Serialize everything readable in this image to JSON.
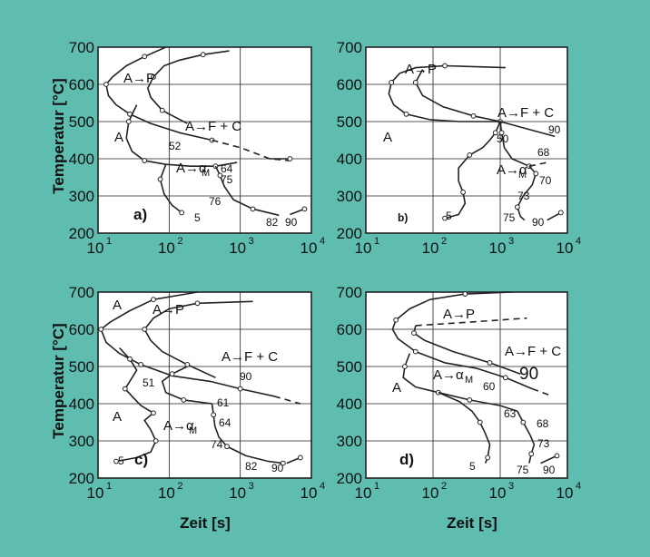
{
  "colors": {
    "background": "#5fbdb0",
    "plot_bg": "#ffffff",
    "line": "#222222"
  },
  "axis_labels": {
    "y": "Temperatur [°C]",
    "x": "Zeit [s]"
  },
  "chart_data": [
    {
      "id": "a",
      "type": "line",
      "panel_label": "a)",
      "xscale": "log",
      "xlim": [
        10,
        10000
      ],
      "ylim": [
        200,
        700
      ],
      "grid": true,
      "x_ticks": [
        "10^1",
        "10^2",
        "10^3",
        "10^4"
      ],
      "y_ticks": [
        200,
        300,
        400,
        500,
        600,
        700
      ],
      "series": [
        {
          "points": [
            [
              90,
              700
            ],
            [
              45,
              675
            ],
            [
              25,
              650
            ],
            [
              16,
              620
            ],
            [
              13,
              600
            ],
            [
              14,
              570
            ],
            [
              18,
              545
            ],
            [
              28,
              520
            ],
            [
              55,
              495
            ],
            [
              140,
              470
            ],
            [
              400,
              450
            ]
          ]
        },
        {
          "points": [
            [
              700,
              690
            ],
            [
              300,
              680
            ],
            [
              140,
              665
            ],
            [
              85,
              650
            ],
            [
              60,
              620
            ],
            [
              50,
              590
            ],
            [
              55,
              565
            ],
            [
              80,
              530
            ],
            [
              180,
              495
            ]
          ]
        },
        {
          "points": [
            [
              35,
              545
            ],
            [
              27,
              500
            ],
            [
              25,
              455
            ],
            [
              30,
              420
            ],
            [
              45,
              395
            ],
            [
              90,
              385
            ],
            [
              200,
              380
            ],
            [
              450,
              380
            ],
            [
              900,
              390
            ]
          ]
        },
        {
          "points": [
            [
              90,
              385
            ],
            [
              75,
              345
            ],
            [
              85,
              305
            ],
            [
              110,
              275
            ],
            [
              150,
              255
            ]
          ]
        },
        {
          "points": [
            [
              450,
              380
            ],
            [
              520,
              355
            ],
            [
              600,
              325
            ],
            [
              800,
              290
            ],
            [
              1500,
              265
            ],
            [
              3500,
              248
            ]
          ]
        },
        {
          "points": [
            [
              400,
              450
            ],
            [
              1000,
              430
            ],
            [
              2600,
              400
            ],
            [
              5000,
              395
            ]
          ],
          "dashed": true
        },
        {
          "points": [
            [
              2600,
              400
            ],
            [
              5000,
              400
            ]
          ]
        },
        {
          "points": [
            [
              5000,
              250
            ],
            [
              8000,
              265
            ]
          ]
        }
      ],
      "region_labels": [
        "A",
        "A→P",
        "A→F + C",
        "A→α",
        "M"
      ],
      "data_labels": [
        "52",
        "64",
        "75",
        "76",
        "5",
        "82",
        "90"
      ]
    },
    {
      "id": "b",
      "type": "line",
      "panel_label": "b)",
      "xscale": "log",
      "xlim": [
        10,
        10000
      ],
      "ylim": [
        200,
        700
      ],
      "grid": true,
      "x_ticks": [
        "10^1",
        "10^2",
        "10^3",
        "10^4"
      ],
      "y_ticks": [
        200,
        300,
        400,
        500,
        600,
        700
      ],
      "series": [
        {
          "points": [
            [
              1200,
              645
            ],
            [
              150,
              650
            ],
            [
              55,
              645
            ],
            [
              32,
              630
            ],
            [
              24,
              605
            ],
            [
              22,
              575
            ],
            [
              26,
              545
            ],
            [
              40,
              520
            ],
            [
              90,
              505
            ],
            [
              250,
              500
            ],
            [
              1000,
              500
            ]
          ]
        },
        {
          "points": [
            [
              70,
              640
            ],
            [
              55,
              605
            ],
            [
              70,
              570
            ],
            [
              140,
              540
            ],
            [
              400,
              515
            ],
            [
              1000,
              500
            ],
            [
              6500,
              460
            ]
          ]
        },
        {
          "points": [
            [
              1000,
              500
            ],
            [
              850,
              470
            ],
            [
              700,
              450
            ],
            [
              550,
              430
            ],
            [
              350,
              410
            ],
            [
              240,
              375
            ],
            [
              240,
              340
            ],
            [
              280,
              310
            ],
            [
              300,
              280
            ],
            [
              240,
              250
            ],
            [
              150,
              240
            ]
          ]
        },
        {
          "points": [
            [
              1000,
              500
            ],
            [
              1050,
              470
            ],
            [
              1150,
              430
            ],
            [
              1500,
              400
            ],
            [
              2700,
              380
            ]
          ]
        },
        {
          "points": [
            [
              2700,
              380
            ],
            [
              3400,
              360
            ],
            [
              3000,
              330
            ],
            [
              2200,
              300
            ],
            [
              1800,
              270
            ],
            [
              2000,
              245
            ],
            [
              2300,
              235
            ]
          ]
        },
        {
          "points": [
            [
              2700,
              380
            ],
            [
              5000,
              390
            ]
          ],
          "dashed": true
        },
        {
          "points": [
            [
              5000,
              235
            ],
            [
              8000,
              255
            ]
          ]
        }
      ],
      "region_labels": [
        "A",
        "A→P",
        "A→F + C",
        "A→α",
        "M"
      ],
      "data_labels": [
        "90",
        "50",
        "68",
        "70",
        "73",
        "5",
        "75",
        "90"
      ]
    },
    {
      "id": "c",
      "type": "line",
      "panel_label": "c)",
      "xscale": "log",
      "xlim": [
        10,
        10000
      ],
      "ylim": [
        200,
        700
      ],
      "grid": true,
      "x_ticks": [
        "10^1",
        "10^2",
        "10^3",
        "10^4"
      ],
      "y_ticks": [
        200,
        300,
        400,
        500,
        600,
        700
      ],
      "series": [
        {
          "points": [
            [
              250,
              700
            ],
            [
              60,
              680
            ],
            [
              28,
              650
            ],
            [
              15,
              620
            ],
            [
              11,
              600
            ],
            [
              13,
              565
            ],
            [
              20,
              535
            ],
            [
              40,
              505
            ],
            [
              110,
              475
            ],
            [
              380,
              460
            ],
            [
              1000,
              440
            ],
            [
              3000,
              420
            ]
          ]
        },
        {
          "points": [
            [
              1500,
              675
            ],
            [
              250,
              670
            ],
            [
              100,
              655
            ],
            [
              60,
              630
            ],
            [
              45,
              600
            ],
            [
              55,
              570
            ],
            [
              80,
              540
            ],
            [
              180,
              505
            ],
            [
              450,
              470
            ]
          ]
        },
        {
          "points": [
            [
              20,
              550
            ],
            [
              28,
              520
            ],
            [
              35,
              490
            ],
            [
              28,
              460
            ],
            [
              24,
              440
            ],
            [
              30,
              420
            ],
            [
              40,
              395
            ],
            [
              60,
              375
            ],
            [
              45,
              355
            ],
            [
              55,
              330
            ],
            [
              65,
              300
            ],
            [
              55,
              270
            ],
            [
              35,
              255
            ],
            [
              18,
              245
            ]
          ]
        },
        {
          "points": [
            [
              180,
              500
            ],
            [
              110,
              480
            ],
            [
              80,
              460
            ],
            [
              90,
              430
            ],
            [
              160,
              410
            ],
            [
              400,
              400
            ]
          ]
        },
        {
          "points": [
            [
              400,
              400
            ],
            [
              420,
              370
            ],
            [
              440,
              340
            ],
            [
              500,
              310
            ],
            [
              650,
              285
            ],
            [
              1200,
              260
            ],
            [
              2500,
              245
            ],
            [
              4000,
              240
            ]
          ]
        },
        {
          "points": [
            [
              3000,
              420
            ],
            [
              7000,
              400
            ]
          ],
          "dashed": true
        },
        {
          "points": [
            [
              4500,
              240
            ],
            [
              7000,
              255
            ]
          ]
        }
      ],
      "region_labels": [
        "A",
        "A",
        "A→P",
        "A→F + C",
        "A→α",
        "M"
      ],
      "data_labels": [
        "51",
        "90",
        "61",
        "64",
        "74",
        "5",
        "82",
        "90"
      ]
    },
    {
      "id": "d",
      "type": "line",
      "panel_label": "d)",
      "xscale": "log",
      "xlim": [
        10,
        10000
      ],
      "ylim": [
        200,
        700
      ],
      "grid": true,
      "x_ticks": [
        "10^1",
        "10^2",
        "10^3",
        "10^4"
      ],
      "y_ticks": [
        200,
        300,
        400,
        500,
        600,
        700
      ],
      "series": [
        {
          "points": [
            [
              1500,
              700
            ],
            [
              300,
              695
            ],
            [
              90,
              680
            ],
            [
              45,
              655
            ],
            [
              28,
              625
            ],
            [
              25,
              600
            ],
            [
              30,
              575
            ],
            [
              55,
              540
            ],
            [
              150,
              510
            ],
            [
              450,
              495
            ],
            [
              1200,
              470
            ],
            [
              3000,
              440
            ]
          ]
        },
        {
          "points": [
            [
              55,
              610
            ],
            [
              52,
              590
            ],
            [
              75,
              570
            ],
            [
              200,
              540
            ],
            [
              700,
              510
            ],
            [
              2000,
              480
            ]
          ]
        },
        {
          "points": [
            [
              55,
              610
            ],
            [
              400,
              620
            ],
            [
              2500,
              630
            ]
          ],
          "dashed": true
        },
        {
          "points": [
            [
              45,
              535
            ],
            [
              38,
              500
            ],
            [
              36,
              470
            ],
            [
              55,
              445
            ],
            [
              120,
              430
            ],
            [
              250,
              405
            ],
            [
              380,
              380
            ],
            [
              500,
              350
            ],
            [
              600,
              320
            ],
            [
              700,
              290
            ],
            [
              650,
              255
            ],
            [
              600,
              240
            ]
          ]
        },
        {
          "points": [
            [
              120,
              430
            ],
            [
              350,
              410
            ],
            [
              1000,
              395
            ],
            [
              1800,
              380
            ]
          ]
        },
        {
          "points": [
            [
              1800,
              380
            ],
            [
              2200,
              350
            ],
            [
              2800,
              315
            ],
            [
              3200,
              290
            ],
            [
              2900,
              265
            ],
            [
              2700,
              240
            ]
          ]
        },
        {
          "points": [
            [
              3000,
              440
            ],
            [
              6000,
              420
            ]
          ],
          "dashed": true
        },
        {
          "points": [
            [
              4000,
              240
            ],
            [
              7000,
              260
            ]
          ]
        }
      ],
      "region_labels": [
        "A",
        "A→P",
        "A→F + C",
        "A→α",
        "M"
      ],
      "data_labels": [
        "90",
        "60",
        "63",
        "68",
        "73",
        "5",
        "75",
        "90"
      ]
    }
  ]
}
